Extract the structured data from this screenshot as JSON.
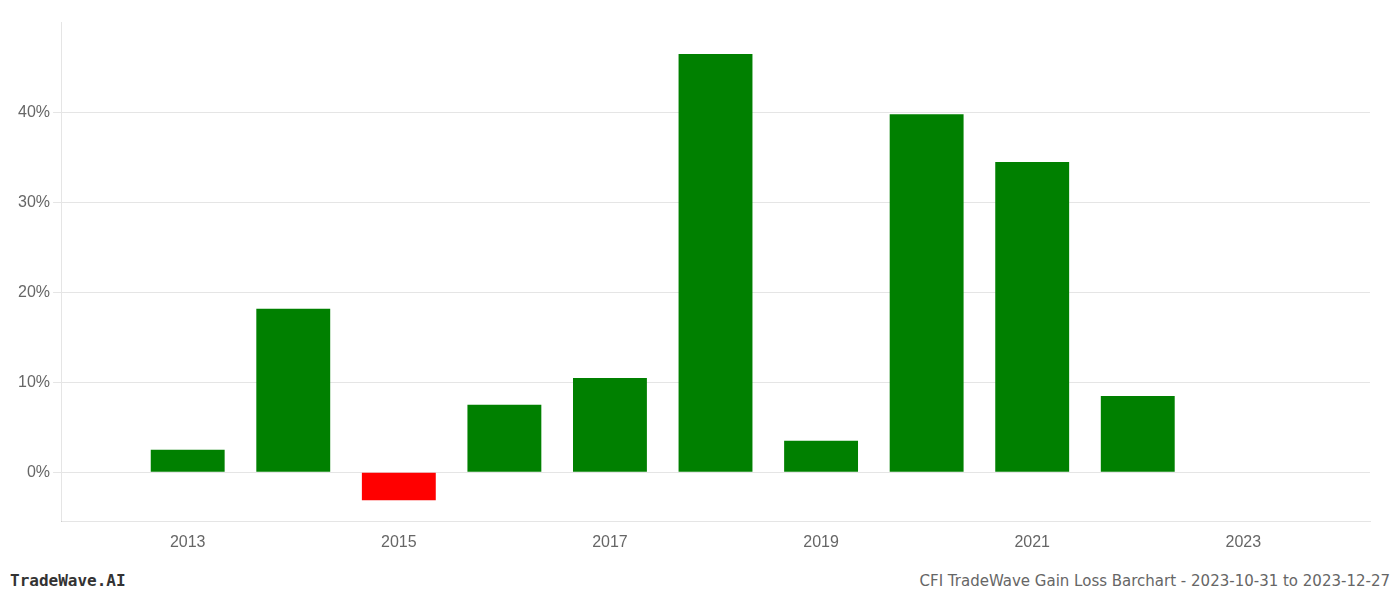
{
  "chart_data": {
    "type": "bar",
    "title": "CFI TradeWave Gain Loss Barchart - 2023-10-31 to 2023-12-27",
    "annotations": [
      "TradeWave.AI"
    ],
    "x": [
      2013,
      2014,
      2015,
      2016,
      2017,
      2018,
      2019,
      2020,
      2021,
      2022
    ],
    "values": [
      2.5,
      18.2,
      -3.1,
      7.5,
      10.5,
      46.5,
      3.5,
      39.8,
      34.5,
      8.5
    ],
    "colors": [
      "#008000",
      "#008000",
      "#ff0000",
      "#008000",
      "#008000",
      "#008000",
      "#008000",
      "#008000",
      "#008000",
      "#008000"
    ],
    "xlim": [
      2011.8,
      2024.2
    ],
    "ylim": [
      -5.5,
      50
    ],
    "xticks": [
      2013,
      2015,
      2017,
      2019,
      2021,
      2023
    ],
    "yticks": [
      {
        "value": 0,
        "label": "0%"
      },
      {
        "value": 10,
        "label": "10%"
      },
      {
        "value": 20,
        "label": "20%"
      },
      {
        "value": 30,
        "label": "30%"
      },
      {
        "value": 40,
        "label": "40%"
      }
    ],
    "grid": "y"
  }
}
